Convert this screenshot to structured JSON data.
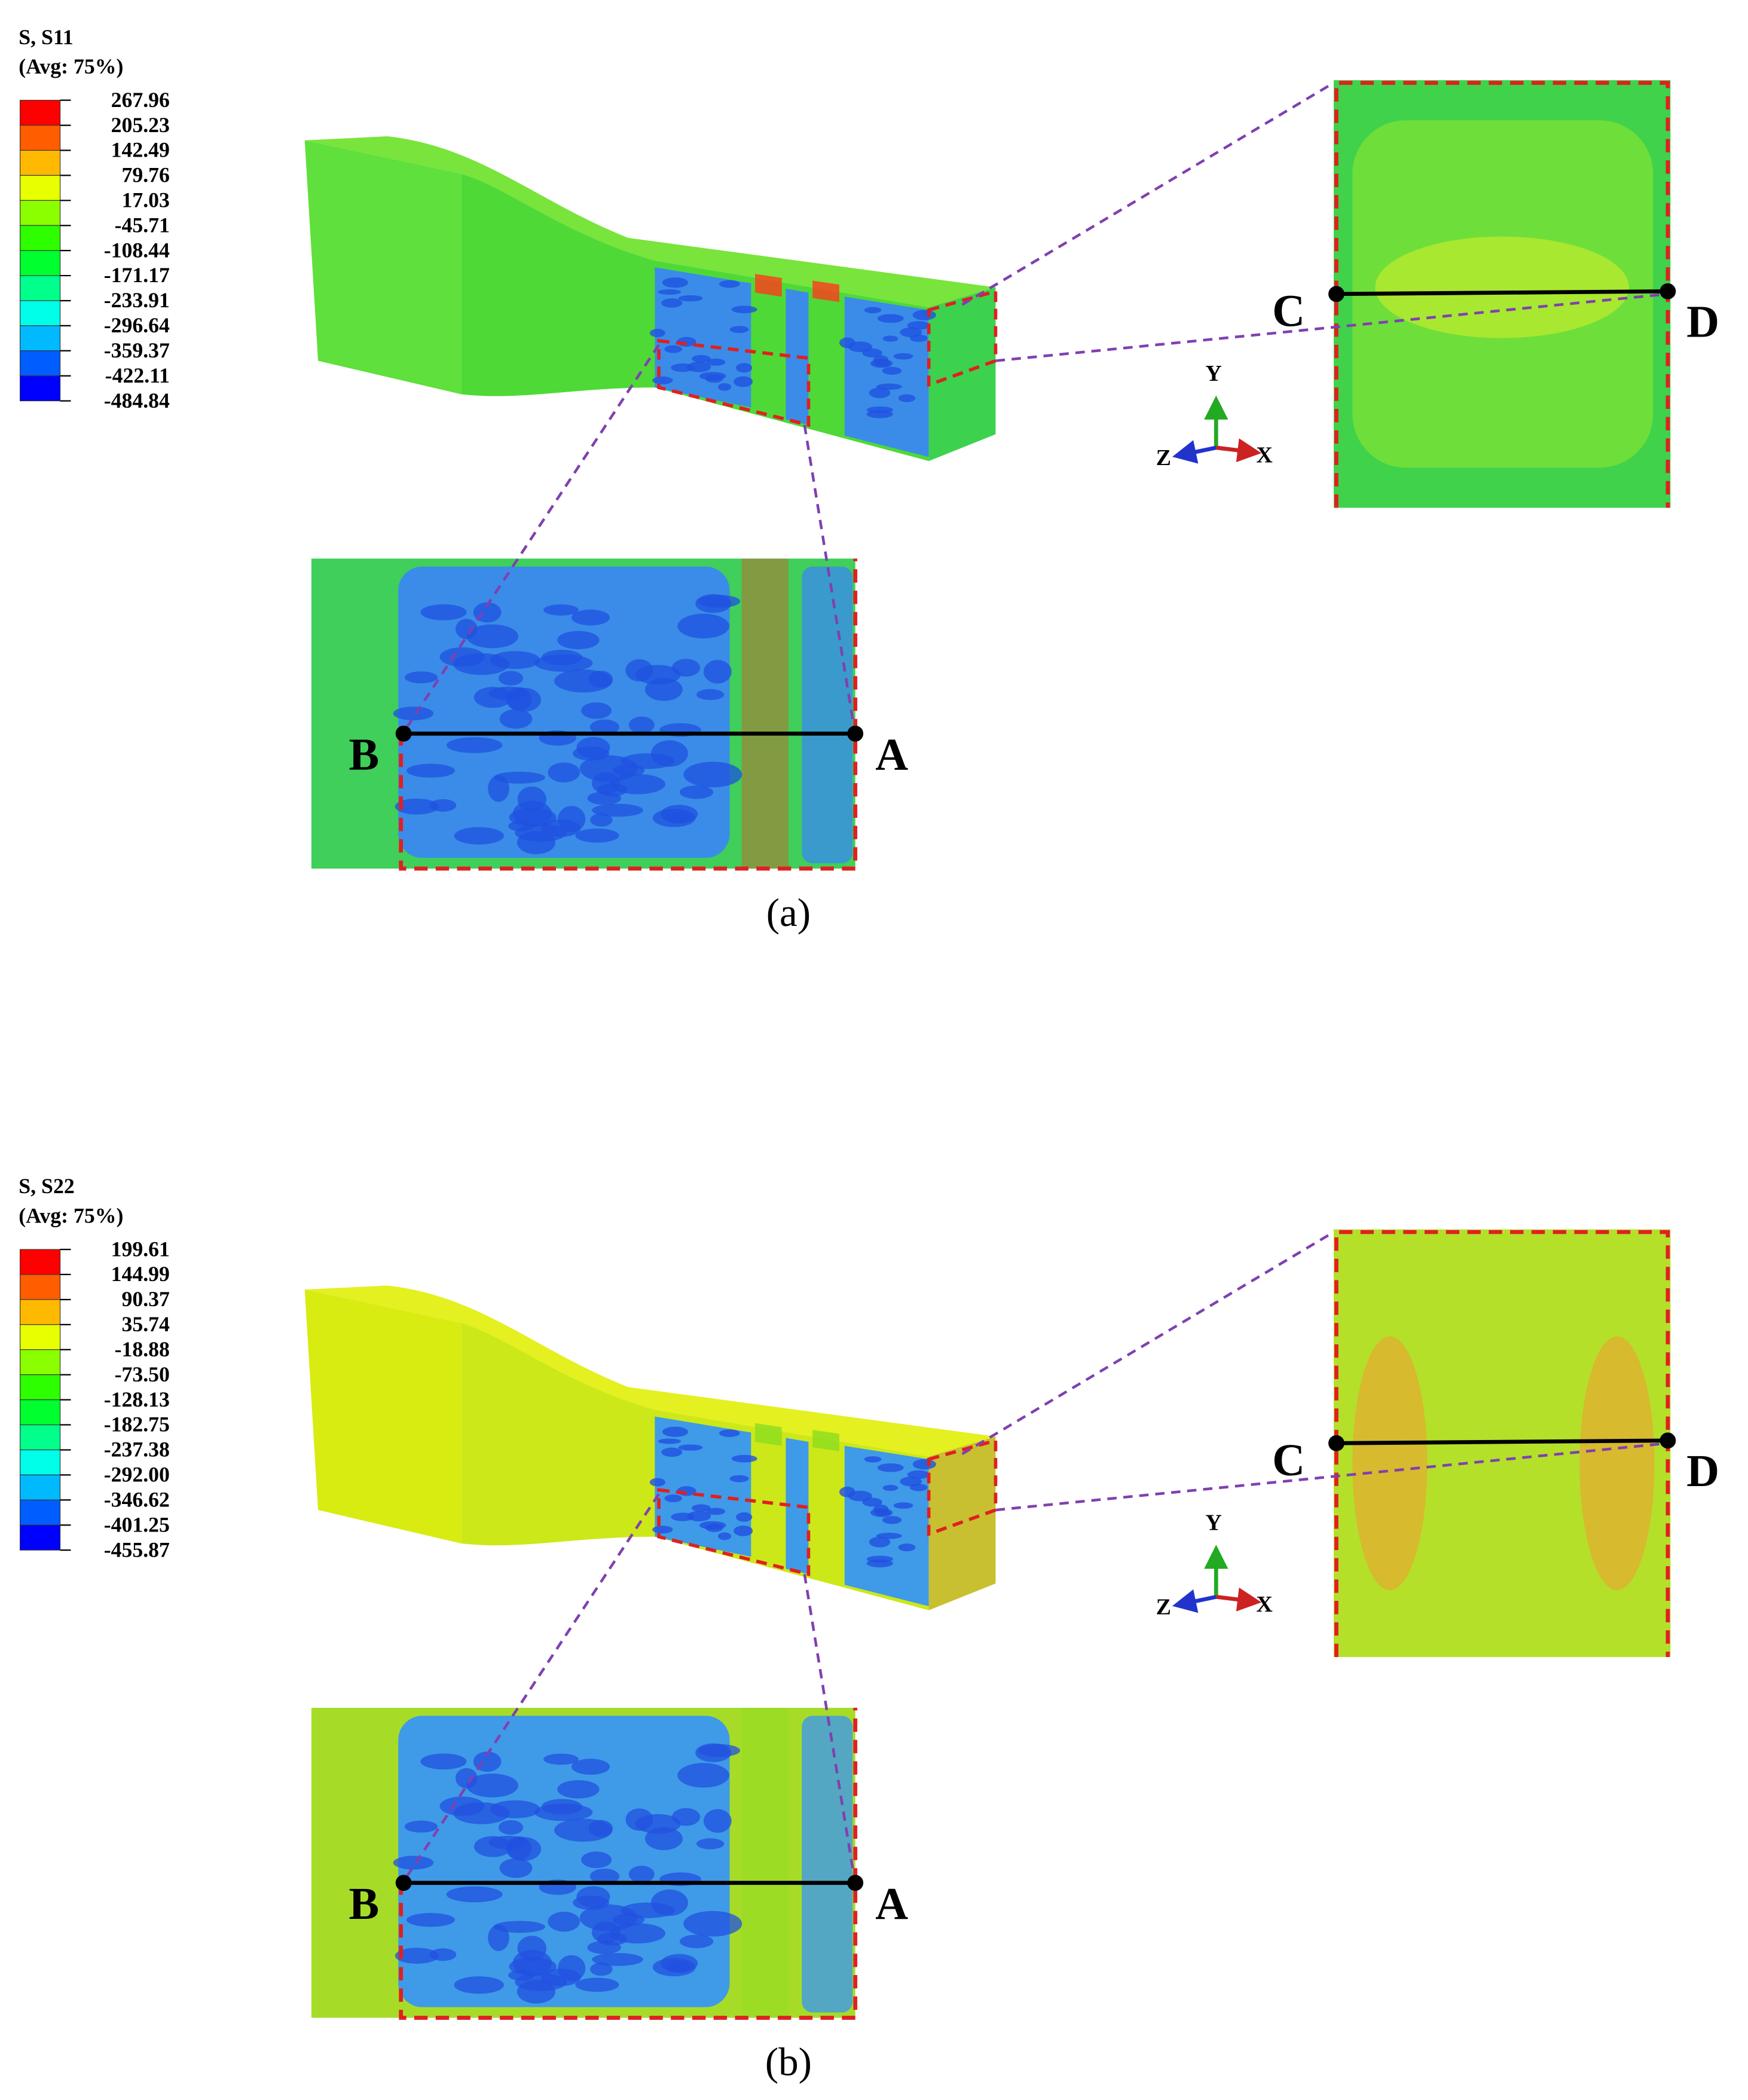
{
  "panels": [
    {
      "legend": {
        "title": "S, S11",
        "subtitle": "(Avg: 75%)",
        "values": [
          "267.96",
          "205.23",
          "142.49",
          "79.76",
          "17.03",
          "-45.71",
          "-108.44",
          "-171.17",
          "-233.91",
          "-296.64",
          "-359.37",
          "-422.11",
          "-484.84"
        ]
      },
      "points": [
        "B",
        "A",
        "C",
        "D"
      ],
      "axes": [
        "Y",
        "Z",
        "X"
      ],
      "caption": "(a)"
    },
    {
      "legend": {
        "title": "S, S22",
        "subtitle": "(Avg: 75%)",
        "values": [
          "199.61",
          "144.99",
          "90.37",
          "35.74",
          "-18.88",
          "-73.50",
          "-128.13",
          "-182.75",
          "-237.38",
          "-292.00",
          "-346.62",
          "-401.25",
          "-455.87"
        ]
      },
      "points": [
        "B",
        "A",
        "C",
        "D"
      ],
      "axes": [
        "Y",
        "Z",
        "X"
      ],
      "caption": "(b)"
    }
  ]
}
